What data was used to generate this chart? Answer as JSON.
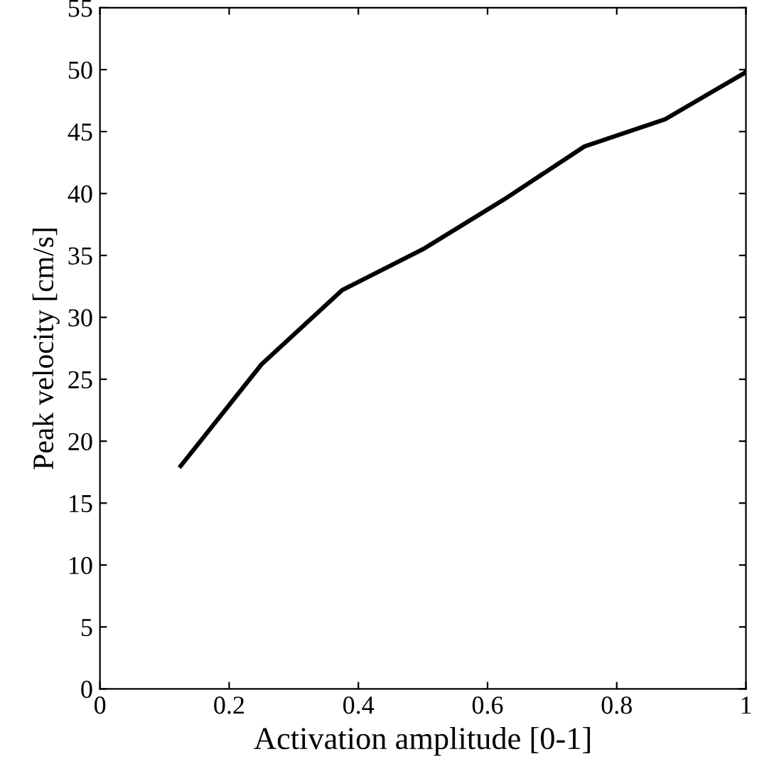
{
  "chart_data": {
    "type": "line",
    "xlabel": "Activation amplitude [0-1]",
    "ylabel": "Peak velocity [cm/s]",
    "x": [
      0.125,
      0.25,
      0.375,
      0.5,
      0.625,
      0.75,
      0.875,
      1.0
    ],
    "series": [
      {
        "color": "#000000",
        "values": [
          18,
          26.2,
          32.2,
          35.5,
          39.5,
          43.8,
          46,
          49.8
        ]
      }
    ],
    "xlim": [
      0,
      1
    ],
    "xticks": [
      0,
      0.2,
      0.4,
      0.6,
      0.8,
      1
    ],
    "ylim": [
      0,
      55
    ],
    "yticks": [
      0,
      5,
      10,
      15,
      20,
      25,
      30,
      35,
      40,
      45,
      50,
      55
    ],
    "grid": false,
    "legend": false,
    "marker": "none",
    "line_style": "solid"
  }
}
